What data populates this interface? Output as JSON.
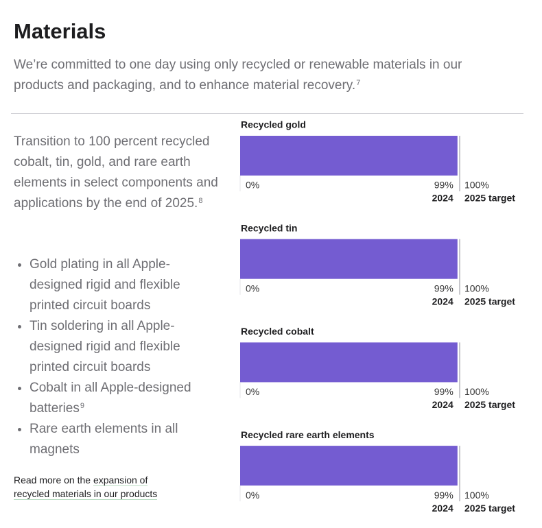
{
  "header": {
    "title": "Materials",
    "subtitle": "We’re committed to one day using only recycled or renewable materials in our products and packaging, and to enhance material recovery.",
    "subtitle_note": "7"
  },
  "goal": {
    "text": "Transition to 100 percent recycled cobalt, tin, gold, and rare earth elements in select components and applications by the end of 2025.",
    "note": "8"
  },
  "bullets": [
    {
      "text": "Gold plating in all Apple-designed rigid and flexible printed circuit boards"
    },
    {
      "text": "Tin soldering in all Apple-designed rigid and flexible printed circuit boards"
    },
    {
      "text": "Cobalt in all Apple-designed batteries",
      "note": "9"
    },
    {
      "text": "Rare earth elements in all magnets"
    }
  ],
  "link": {
    "prefix": "Read more on the",
    "text": "expansion of recycled materials in our products"
  },
  "charts": [
    {
      "title": "Recycled gold",
      "value": 99,
      "value_label": "99%",
      "year": "2024",
      "target_name": "2025 target",
      "color": "#745cd1",
      "xlim": [
        0,
        100
      ],
      "xticks": [
        {
          "value": 0,
          "label": "0%"
        },
        {
          "value": 100,
          "label": "100%"
        }
      ]
    },
    {
      "title": "Recycled tin",
      "value": 99,
      "value_label": "99%",
      "year": "2024",
      "target_name": "2025 target",
      "color": "#745cd1",
      "xlim": [
        0,
        100
      ],
      "xticks": [
        {
          "value": 0,
          "label": "0%"
        },
        {
          "value": 100,
          "label": "100%"
        }
      ]
    },
    {
      "title": "Recycled cobalt",
      "value": 99,
      "value_label": "99%",
      "year": "2024",
      "target_name": "2025 target",
      "color": "#745cd1",
      "xlim": [
        0,
        100
      ],
      "xticks": [
        {
          "value": 0,
          "label": "0%"
        },
        {
          "value": 100,
          "label": "100%"
        }
      ]
    },
    {
      "title": "Recycled rare earth elements",
      "value": 99,
      "value_label": "99%",
      "year": "2024",
      "target_name": "2025 target",
      "color": "#745cd1",
      "xlim": [
        0,
        100
      ],
      "xticks": [
        {
          "value": 0,
          "label": "0%"
        },
        {
          "value": 100,
          "label": "100%"
        }
      ]
    }
  ]
}
